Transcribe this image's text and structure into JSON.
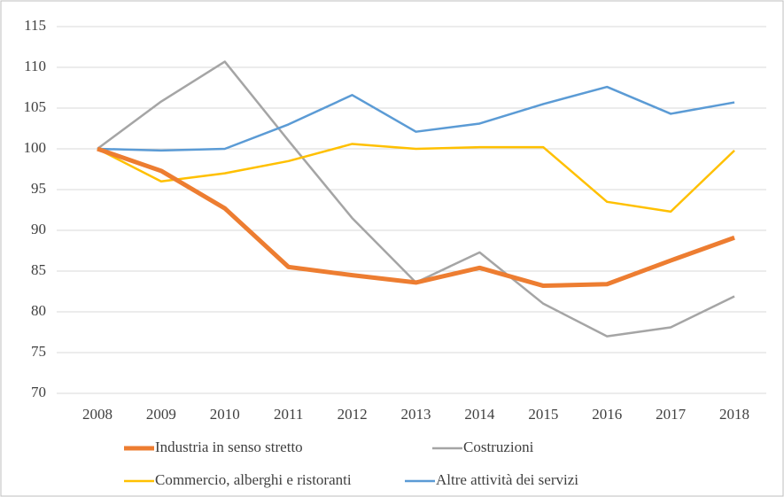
{
  "chart_data": {
    "type": "line",
    "categories": [
      "2008",
      "2009",
      "2010",
      "2011",
      "2012",
      "2013",
      "2014",
      "2015",
      "2016",
      "2017",
      "2018"
    ],
    "series": [
      {
        "name": "Industria in senso stretto",
        "color": "#ed7d31",
        "values": [
          100,
          97.3,
          92.7,
          85.5,
          84.5,
          83.6,
          85.4,
          83.2,
          83.4,
          86.3,
          89.1
        ]
      },
      {
        "name": "Costruzioni",
        "color": "#a5a5a5",
        "values": [
          100,
          105.8,
          110.7,
          101,
          91.5,
          83.6,
          87.3,
          81,
          77,
          78.1,
          81.9
        ]
      },
      {
        "name": "Commercio, alberghi e ristoranti",
        "color": "#ffc000",
        "values": [
          100,
          96,
          97,
          98.5,
          100.6,
          100,
          100.2,
          100.2,
          93.5,
          92.3,
          99.8
        ]
      },
      {
        "name": "Altre attività dei servizi",
        "color": "#5b9bd5",
        "values": [
          100,
          99.8,
          100,
          103,
          106.6,
          102.1,
          103.1,
          105.5,
          107.6,
          104.3,
          105.7
        ]
      }
    ],
    "ylim": [
      70,
      115
    ],
    "yticks": [
      70,
      75,
      80,
      85,
      90,
      95,
      100,
      105,
      110,
      115
    ],
    "grid": true,
    "legend": "bottom"
  }
}
